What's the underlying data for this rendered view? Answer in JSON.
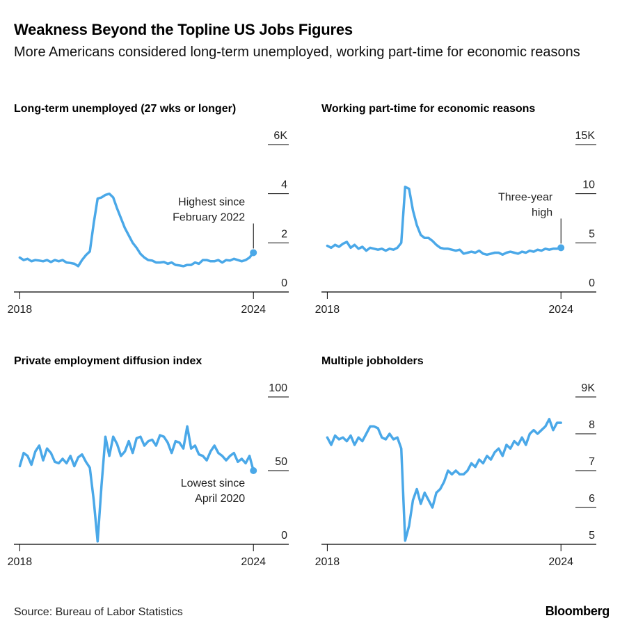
{
  "title": "Weakness Beyond the Topline US Jobs Figures",
  "subtitle": "More Americans considered long-term unemployed, working part-time for economic reasons",
  "source": "Source: Bureau of Labor Statistics",
  "brand": "Bloomberg",
  "colors": {
    "line": "#4aa8e8",
    "axis": "#000000",
    "text": "#222222"
  },
  "chart_data": [
    {
      "type": "line",
      "title": "Long-term unemployed (27 wks or longer)",
      "x_ticks": [
        "2018",
        "2024"
      ],
      "y_ticks": [
        "6K",
        "4",
        "2",
        "0"
      ],
      "y_tick_values": [
        6,
        4,
        2,
        0
      ],
      "ylim": [
        0,
        6
      ],
      "xlim": [
        2017.85,
        2024.55
      ],
      "annotation": {
        "text": [
          "Highest since",
          "February 2022"
        ],
        "x": 2024.0,
        "y": 1.6,
        "align": "end"
      },
      "series": [
        {
          "x": [
            2018.0,
            2018.1,
            2018.2,
            2018.3,
            2018.4,
            2018.5,
            2018.6,
            2018.7,
            2018.8,
            2018.9,
            2019.0,
            2019.1,
            2019.2,
            2019.3,
            2019.4,
            2019.5,
            2019.6,
            2019.7,
            2019.8,
            2019.9,
            2020.0,
            2020.1,
            2020.2,
            2020.3,
            2020.4,
            2020.5,
            2020.6,
            2020.7,
            2020.8,
            2020.9,
            2021.0,
            2021.1,
            2021.2,
            2021.3,
            2021.4,
            2021.5,
            2021.6,
            2021.7,
            2021.8,
            2021.9,
            2022.0,
            2022.1,
            2022.2,
            2022.3,
            2022.4,
            2022.5,
            2022.6,
            2022.7,
            2022.8,
            2022.9,
            2023.0,
            2023.1,
            2023.2,
            2023.3,
            2023.4,
            2023.5,
            2023.6,
            2023.7,
            2023.8,
            2023.9,
            2024.0
          ],
          "y": [
            1.4,
            1.3,
            1.35,
            1.25,
            1.3,
            1.28,
            1.25,
            1.3,
            1.22,
            1.3,
            1.25,
            1.3,
            1.2,
            1.18,
            1.15,
            1.05,
            1.3,
            1.5,
            1.65,
            2.8,
            3.8,
            3.85,
            3.95,
            4.0,
            3.85,
            3.4,
            3.0,
            2.6,
            2.3,
            2.0,
            1.8,
            1.55,
            1.4,
            1.3,
            1.28,
            1.2,
            1.2,
            1.22,
            1.15,
            1.2,
            1.1,
            1.08,
            1.05,
            1.1,
            1.1,
            1.2,
            1.15,
            1.3,
            1.3,
            1.25,
            1.25,
            1.3,
            1.2,
            1.3,
            1.28,
            1.35,
            1.3,
            1.25,
            1.3,
            1.4,
            1.6
          ]
        }
      ]
    },
    {
      "type": "line",
      "title": "Working part-time for economic reasons",
      "x_ticks": [
        "2018",
        "2024"
      ],
      "y_ticks": [
        "15K",
        "10",
        "5",
        "0"
      ],
      "y_tick_values": [
        15,
        10,
        5,
        0
      ],
      "ylim": [
        0,
        15
      ],
      "xlim": [
        2017.85,
        2024.55
      ],
      "annotation": {
        "text": [
          "Three-year",
          "high"
        ],
        "x": 2024.0,
        "y": 4.5,
        "align": "end"
      },
      "series": [
        {
          "x": [
            2018.0,
            2018.1,
            2018.2,
            2018.3,
            2018.4,
            2018.5,
            2018.6,
            2018.7,
            2018.8,
            2018.9,
            2019.0,
            2019.1,
            2019.2,
            2019.3,
            2019.4,
            2019.5,
            2019.6,
            2019.7,
            2019.8,
            2019.9,
            2020.0,
            2020.1,
            2020.2,
            2020.3,
            2020.4,
            2020.5,
            2020.6,
            2020.7,
            2020.8,
            2020.9,
            2021.0,
            2021.1,
            2021.2,
            2021.3,
            2021.4,
            2021.5,
            2021.6,
            2021.7,
            2021.8,
            2021.9,
            2022.0,
            2022.1,
            2022.2,
            2022.3,
            2022.4,
            2022.5,
            2022.6,
            2022.7,
            2022.8,
            2022.9,
            2023.0,
            2023.1,
            2023.2,
            2023.3,
            2023.4,
            2023.5,
            2023.6,
            2023.7,
            2023.8,
            2023.9,
            2024.0
          ],
          "y": [
            4.7,
            4.5,
            4.8,
            4.6,
            4.9,
            5.1,
            4.5,
            4.8,
            4.4,
            4.6,
            4.2,
            4.5,
            4.4,
            4.3,
            4.4,
            4.2,
            4.4,
            4.3,
            4.5,
            5.0,
            10.7,
            10.5,
            8.3,
            6.8,
            5.8,
            5.5,
            5.5,
            5.2,
            4.8,
            4.5,
            4.4,
            4.4,
            4.3,
            4.2,
            4.3,
            3.9,
            4.0,
            4.1,
            4.0,
            4.2,
            3.9,
            3.8,
            3.9,
            4.0,
            4.0,
            3.8,
            4.0,
            4.1,
            4.0,
            3.9,
            4.1,
            4.0,
            4.2,
            4.1,
            4.3,
            4.2,
            4.4,
            4.3,
            4.4,
            4.4,
            4.5
          ]
        }
      ]
    },
    {
      "type": "line",
      "title": "Private employment diffusion index",
      "x_ticks": [
        "2018",
        "2024"
      ],
      "y_ticks": [
        "100",
        "50",
        "0"
      ],
      "y_tick_values": [
        100,
        50,
        0
      ],
      "ylim": [
        0,
        100
      ],
      "xlim": [
        2017.85,
        2024.55
      ],
      "annotation": {
        "text": [
          "Lowest since",
          "April 2020"
        ],
        "x": 2024.0,
        "y": 48.6,
        "align": "end"
      },
      "series": [
        {
          "x": [
            2018.0,
            2018.1,
            2018.2,
            2018.3,
            2018.4,
            2018.5,
            2018.6,
            2018.7,
            2018.8,
            2018.9,
            2019.0,
            2019.1,
            2019.2,
            2019.3,
            2019.4,
            2019.5,
            2019.6,
            2019.7,
            2019.8,
            2019.9,
            2020.0,
            2020.1,
            2020.2,
            2020.3,
            2020.4,
            2020.5,
            2020.6,
            2020.7,
            2020.8,
            2020.9,
            2021.0,
            2021.1,
            2021.2,
            2021.3,
            2021.4,
            2021.5,
            2021.6,
            2021.7,
            2021.8,
            2021.9,
            2022.0,
            2022.1,
            2022.2,
            2022.3,
            2022.4,
            2022.5,
            2022.6,
            2022.7,
            2022.8,
            2022.9,
            2023.0,
            2023.1,
            2023.2,
            2023.3,
            2023.4,
            2023.5,
            2023.6,
            2023.7,
            2023.8,
            2023.9,
            2024.0
          ],
          "y": [
            53,
            62,
            60,
            54,
            63,
            67,
            57,
            65,
            62,
            56,
            55,
            58,
            55,
            60,
            53,
            59,
            61,
            56,
            52,
            30,
            2,
            40,
            73,
            60,
            73,
            68,
            60,
            63,
            70,
            62,
            72,
            73,
            67,
            70,
            71,
            67,
            74,
            73,
            69,
            62,
            70,
            69,
            65,
            80,
            65,
            67,
            61,
            60,
            57,
            63,
            67,
            62,
            60,
            57,
            60,
            62,
            56,
            58,
            55,
            60,
            50
          ]
        }
      ]
    },
    {
      "type": "line",
      "title": "Multiple jobholders",
      "x_ticks": [
        "2018",
        "2024"
      ],
      "y_ticks": [
        "9K",
        "8",
        "7",
        "6",
        "5"
      ],
      "y_tick_values": [
        9,
        8,
        7,
        6,
        5
      ],
      "ylim": [
        5,
        9
      ],
      "xlim": [
        2017.85,
        2024.55
      ],
      "series": [
        {
          "x": [
            2018.0,
            2018.1,
            2018.2,
            2018.3,
            2018.4,
            2018.5,
            2018.6,
            2018.7,
            2018.8,
            2018.9,
            2019.0,
            2019.1,
            2019.2,
            2019.3,
            2019.4,
            2019.5,
            2019.6,
            2019.7,
            2019.8,
            2019.9,
            2020.0,
            2020.1,
            2020.2,
            2020.3,
            2020.4,
            2020.5,
            2020.6,
            2020.7,
            2020.8,
            2020.9,
            2021.0,
            2021.1,
            2021.2,
            2021.3,
            2021.4,
            2021.5,
            2021.6,
            2021.7,
            2021.8,
            2021.9,
            2022.0,
            2022.1,
            2022.2,
            2022.3,
            2022.4,
            2022.5,
            2022.6,
            2022.7,
            2022.8,
            2022.9,
            2023.0,
            2023.1,
            2023.2,
            2023.3,
            2023.4,
            2023.5,
            2023.6,
            2023.7,
            2023.8,
            2023.9,
            2024.0
          ],
          "y": [
            7.9,
            7.7,
            7.95,
            7.85,
            7.9,
            7.8,
            7.95,
            7.7,
            7.9,
            7.8,
            8.0,
            8.2,
            8.2,
            8.15,
            7.9,
            7.85,
            8.0,
            7.85,
            7.9,
            7.6,
            5.1,
            5.5,
            6.2,
            6.5,
            6.1,
            6.4,
            6.2,
            6.0,
            6.4,
            6.5,
            6.7,
            7.0,
            6.9,
            7.0,
            6.9,
            6.9,
            7.0,
            7.2,
            7.1,
            7.3,
            7.2,
            7.4,
            7.3,
            7.5,
            7.6,
            7.4,
            7.7,
            7.6,
            7.8,
            7.7,
            7.9,
            7.7,
            8.0,
            8.1,
            8.0,
            8.1,
            8.2,
            8.4,
            8.1,
            8.3,
            8.3
          ]
        }
      ]
    }
  ]
}
